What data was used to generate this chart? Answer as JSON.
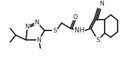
{
  "bg_color": "#ffffff",
  "line_color": "#1a1a1a",
  "line_width": 1.3,
  "font_size": 6.5,
  "figsize": [
    1.93,
    1.02
  ],
  "dpi": 100,
  "xlim": [
    0,
    193
  ],
  "ylim": [
    0,
    102
  ]
}
